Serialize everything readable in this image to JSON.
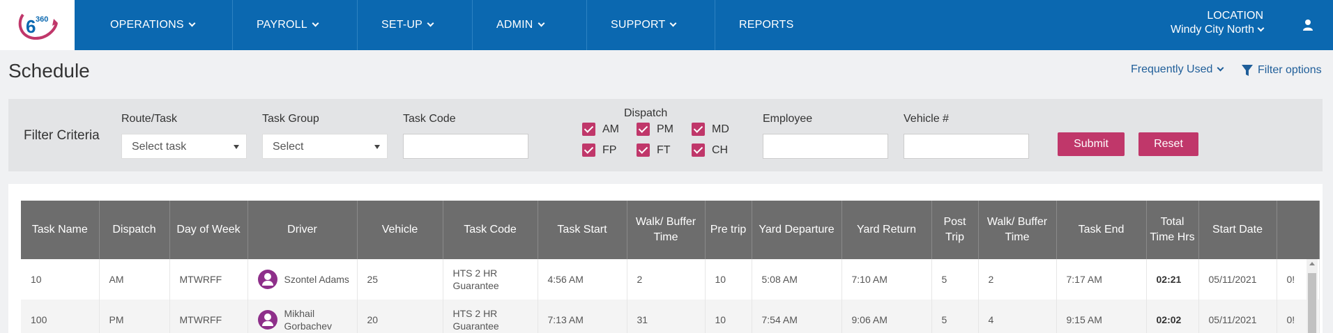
{
  "app": {
    "logo_text": "360"
  },
  "nav": {
    "items": [
      {
        "label": "OPERATIONS",
        "has_menu": true
      },
      {
        "label": "PAYROLL",
        "has_menu": true
      },
      {
        "label": "SET-UP",
        "has_menu": true
      },
      {
        "label": "ADMIN",
        "has_menu": true
      },
      {
        "label": "SUPPORT",
        "has_menu": true
      },
      {
        "label": "REPORTS",
        "has_menu": false
      }
    ],
    "location_label": "LOCATION",
    "location_value": "Windy City North"
  },
  "page": {
    "title": "Schedule",
    "frequently_used": "Frequently Used",
    "filter_options": "Filter options"
  },
  "filters": {
    "title": "Filter Criteria",
    "route_task": {
      "label": "Route/Task",
      "value": "Select task"
    },
    "task_group": {
      "label": "Task Group",
      "value": "Select"
    },
    "task_code": {
      "label": "Task Code",
      "value": ""
    },
    "dispatch": {
      "label": "Dispatch",
      "options": [
        {
          "label": "AM",
          "checked": true
        },
        {
          "label": "PM",
          "checked": true
        },
        {
          "label": "MD",
          "checked": true
        },
        {
          "label": "FP",
          "checked": true
        },
        {
          "label": "FT",
          "checked": true
        },
        {
          "label": "CH",
          "checked": true
        }
      ]
    },
    "employee": {
      "label": "Employee",
      "value": ""
    },
    "vehicle": {
      "label": "Vehicle #",
      "value": ""
    },
    "submit": "Submit",
    "reset": "Reset"
  },
  "table": {
    "columns": [
      "Task Name",
      "Dispatch",
      "Day of Week",
      "Driver",
      "Vehicle",
      "Task Code",
      "Task Start",
      "Walk/ Buffer Time",
      "Pre trip",
      "Yard Departure",
      "Yard Return",
      "Post Trip",
      "Walk/ Buffer Time",
      "Task End",
      "Total Time Hrs",
      "Start Date",
      ""
    ],
    "rows": [
      {
        "task_name": "10",
        "dispatch": "AM",
        "day": "MTWRFF",
        "driver": "Szontel Adams",
        "vehicle": "25",
        "task_code": "HTS 2 HR Guarantee",
        "task_start": "4:56 AM",
        "walk1": "2",
        "pre": "10",
        "yard_dep": "5:08 AM",
        "yard_ret": "7:10 AM",
        "post": "5",
        "walk2": "2",
        "task_end": "7:17 AM",
        "total": "02:21",
        "start_date": "05/11/2021",
        "extra": "0!"
      },
      {
        "task_name": "100",
        "dispatch": "PM",
        "day": "MTWRFF",
        "driver": "Mikhail Gorbachev",
        "vehicle": "20",
        "task_code": "HTS 2 HR Guarantee",
        "task_start": "7:13 AM",
        "walk1": "31",
        "pre": "10",
        "yard_dep": "7:54 AM",
        "yard_ret": "9:06 AM",
        "post": "5",
        "walk2": "4",
        "task_end": "9:15 AM",
        "total": "02:02",
        "start_date": "05/11/2021",
        "extra": "0!"
      }
    ]
  },
  "colors": {
    "nav_bg": "#0b68b0",
    "accent": "#c0376a",
    "header_bg": "#6d6d6d"
  }
}
